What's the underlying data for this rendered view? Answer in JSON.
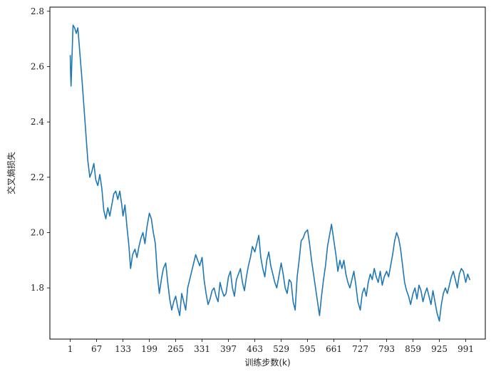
{
  "chart_data": {
    "type": "line",
    "title": "",
    "xlabel": "训练步数(k)",
    "ylabel": "交叉熵损失",
    "xlim": [
      -50,
      1040
    ],
    "ylim": [
      1.615,
      2.815
    ],
    "x_ticks": [
      1,
      67,
      133,
      199,
      265,
      331,
      397,
      463,
      529,
      595,
      661,
      727,
      793,
      859,
      925,
      991
    ],
    "y_ticks": [
      1.8,
      2.0,
      2.2,
      2.4,
      2.6,
      2.8
    ],
    "y_tick_labels": [
      "1.8",
      "2.0",
      "2.2",
      "2.4",
      "2.6",
      "2.8"
    ],
    "grid": false,
    "series": [
      {
        "color": "#1f77b4",
        "x": [
          1,
          2,
          3,
          5,
          8,
          12,
          16,
          20,
          25,
          30,
          35,
          40,
          45,
          50,
          55,
          60,
          65,
          70,
          75,
          80,
          85,
          90,
          95,
          100,
          105,
          110,
          115,
          120,
          125,
          130,
          133,
          138,
          143,
          148,
          152,
          157,
          163,
          168,
          173,
          178,
          183,
          188,
          193,
          199,
          204,
          209,
          214,
          219,
          224,
          229,
          234,
          240,
          245,
          250,
          255,
          260,
          265,
          270,
          275,
          280,
          285,
          290,
          295,
          300,
          305,
          310,
          315,
          320,
          325,
          331,
          336,
          341,
          346,
          351,
          356,
          361,
          366,
          371,
          376,
          381,
          386,
          391,
          397,
          402,
          407,
          412,
          417,
          422,
          427,
          432,
          437,
          442,
          447,
          452,
          457,
          463,
          468,
          473,
          478,
          483,
          488,
          493,
          498,
          503,
          508,
          513,
          518,
          523,
          529,
          534,
          539,
          544,
          549,
          554,
          559,
          564,
          569,
          574,
          579,
          584,
          589,
          595,
          600,
          605,
          610,
          615,
          620,
          625,
          630,
          635,
          640,
          645,
          650,
          655,
          661,
          666,
          671,
          676,
          681,
          686,
          691,
          696,
          701,
          706,
          711,
          716,
          721,
          727,
          732,
          737,
          742,
          747,
          752,
          757,
          762,
          767,
          772,
          777,
          782,
          787,
          793,
          798,
          803,
          808,
          813,
          818,
          823,
          828,
          833,
          838,
          843,
          848,
          853,
          859,
          864,
          869,
          874,
          879,
          884,
          889,
          894,
          899,
          904,
          909,
          914,
          919,
          925,
          930,
          935,
          940,
          945,
          950,
          955,
          960,
          965,
          970,
          975,
          980,
          985,
          991,
          996,
          1001
        ],
        "y": [
          2.64,
          2.57,
          2.53,
          2.62,
          2.75,
          2.74,
          2.72,
          2.74,
          2.65,
          2.56,
          2.46,
          2.36,
          2.26,
          2.2,
          2.22,
          2.25,
          2.19,
          2.17,
          2.21,
          2.16,
          2.08,
          2.05,
          2.09,
          2.06,
          2.1,
          2.14,
          2.15,
          2.12,
          2.15,
          2.1,
          2.06,
          2.1,
          2.02,
          1.95,
          1.87,
          1.92,
          1.94,
          1.91,
          1.95,
          1.98,
          2.0,
          1.96,
          2.02,
          2.07,
          2.05,
          2.0,
          1.96,
          1.85,
          1.78,
          1.83,
          1.87,
          1.89,
          1.82,
          1.76,
          1.72,
          1.75,
          1.77,
          1.73,
          1.7,
          1.78,
          1.75,
          1.72,
          1.8,
          1.83,
          1.86,
          1.89,
          1.92,
          1.9,
          1.88,
          1.91,
          1.83,
          1.78,
          1.74,
          1.76,
          1.79,
          1.8,
          1.77,
          1.75,
          1.82,
          1.79,
          1.77,
          1.78,
          1.84,
          1.86,
          1.8,
          1.77,
          1.83,
          1.85,
          1.87,
          1.82,
          1.79,
          1.84,
          1.88,
          1.91,
          1.95,
          1.93,
          1.96,
          1.99,
          1.91,
          1.87,
          1.84,
          1.9,
          1.93,
          1.88,
          1.85,
          1.82,
          1.8,
          1.84,
          1.89,
          1.85,
          1.8,
          1.78,
          1.83,
          1.82,
          1.75,
          1.72,
          1.84,
          1.9,
          1.97,
          1.98,
          2.0,
          2.01,
          1.96,
          1.9,
          1.85,
          1.8,
          1.75,
          1.7,
          1.77,
          1.83,
          1.88,
          1.95,
          1.99,
          2.03,
          1.97,
          1.92,
          1.86,
          1.9,
          1.87,
          1.9,
          1.85,
          1.82,
          1.8,
          1.83,
          1.86,
          1.81,
          1.75,
          1.72,
          1.78,
          1.8,
          1.77,
          1.82,
          1.85,
          1.83,
          1.87,
          1.84,
          1.82,
          1.86,
          1.81,
          1.84,
          1.86,
          1.84,
          1.88,
          1.92,
          1.97,
          2.0,
          1.98,
          1.94,
          1.88,
          1.82,
          1.79,
          1.77,
          1.74,
          1.78,
          1.8,
          1.76,
          1.81,
          1.79,
          1.75,
          1.78,
          1.8,
          1.77,
          1.74,
          1.79,
          1.75,
          1.71,
          1.68,
          1.74,
          1.78,
          1.8,
          1.78,
          1.81,
          1.84,
          1.86,
          1.83,
          1.8,
          1.85,
          1.87,
          1.86,
          1.82,
          1.85,
          1.83
        ]
      }
    ]
  }
}
